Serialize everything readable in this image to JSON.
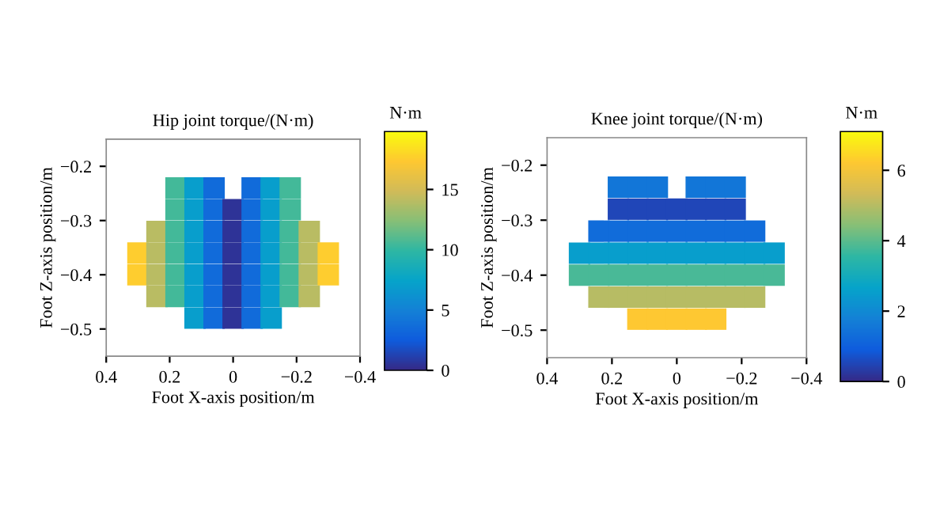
{
  "chart_data": [
    {
      "type": "scatter",
      "title": "Hip joint torque/(N·m)",
      "xlabel": "Foot X-axis position/m",
      "ylabel": "Foot Z-axis position/m",
      "clabel": "N·m",
      "xlim": [
        0.4,
        -0.4
      ],
      "xticks": [
        {
          "value": 0.4,
          "label": "0.4"
        },
        {
          "value": 0.2,
          "label": "0.2"
        },
        {
          "value": 0,
          "label": "0"
        },
        {
          "value": -0.2,
          "label": "−0.2"
        },
        {
          "value": -0.4,
          "label": "−0.4"
        }
      ],
      "ylim": [
        -0.55,
        -0.15
      ],
      "yticks": [
        {
          "value": -0.2,
          "label": "−0.2"
        },
        {
          "value": -0.3,
          "label": "−0.3"
        },
        {
          "value": -0.4,
          "label": "−0.4"
        },
        {
          "value": -0.5,
          "label": "−0.5"
        }
      ],
      "clim": [
        0,
        19.8
      ],
      "cticks": [
        0,
        5,
        10,
        15
      ],
      "grid": false,
      "marker": "square",
      "series": [
        {
          "x": [
            0.18,
            0.12,
            0.06,
            -0.06,
            -0.12,
            -0.18,
            0.18,
            0.12,
            0.06,
            0,
            -0.06,
            -0.12,
            -0.18,
            0.24,
            0.18,
            0.12,
            0.06,
            0,
            -0.06,
            -0.12,
            -0.18,
            -0.24,
            0.3,
            0.24,
            0.18,
            0.12,
            0.06,
            0,
            -0.06,
            -0.12,
            -0.18,
            -0.24,
            -0.3,
            0.3,
            0.24,
            0.18,
            0.12,
            0.06,
            0,
            -0.06,
            -0.12,
            -0.18,
            -0.24,
            -0.3,
            0.24,
            0.18,
            0.12,
            0.06,
            0,
            -0.06,
            -0.12,
            -0.18,
            -0.24,
            0.12,
            0.06,
            0,
            -0.06,
            -0.12
          ],
          "values": [
            -0.24,
            -0.24,
            -0.24,
            -0.24,
            -0.24,
            -0.24,
            -0.28,
            -0.28,
            -0.28,
            -0.28,
            -0.28,
            -0.28,
            -0.28,
            -0.32,
            -0.32,
            -0.32,
            -0.32,
            -0.32,
            -0.32,
            -0.32,
            -0.32,
            -0.32,
            -0.36,
            -0.36,
            -0.36,
            -0.36,
            -0.36,
            -0.36,
            -0.36,
            -0.36,
            -0.36,
            -0.36,
            -0.36,
            -0.4,
            -0.4,
            -0.4,
            -0.4,
            -0.4,
            -0.4,
            -0.4,
            -0.4,
            -0.4,
            -0.4,
            -0.4,
            -0.44,
            -0.44,
            -0.44,
            -0.44,
            -0.44,
            -0.44,
            -0.44,
            -0.44,
            -0.44,
            -0.48,
            -0.48,
            -0.48,
            -0.48,
            -0.48
          ],
          "cvalues": [
            10.5,
            7,
            3.5,
            3.5,
            7,
            10.5,
            10.5,
            7,
            3.5,
            0.5,
            3.5,
            7,
            10.5,
            14,
            10.5,
            7,
            3.5,
            0.5,
            3.5,
            7,
            10.5,
            14,
            17.5,
            14,
            10.5,
            7,
            3.5,
            0.5,
            3.5,
            7,
            10.5,
            14,
            17.5,
            17.5,
            14,
            10.5,
            7,
            3.5,
            0.5,
            3.5,
            7,
            10.5,
            14,
            17.5,
            14,
            10.5,
            7,
            3.5,
            0.5,
            3.5,
            7,
            10.5,
            14,
            7,
            3.5,
            0.5,
            3.5,
            7
          ]
        }
      ]
    },
    {
      "type": "scatter",
      "title": "Knee joint torque/(N·m)",
      "xlabel": "Foot X-axis position/m",
      "ylabel": "Foot Z-axis position/m",
      "clabel": "N·m",
      "xlim": [
        0.4,
        -0.4
      ],
      "xticks": [
        {
          "value": 0.4,
          "label": "0.4"
        },
        {
          "value": 0.2,
          "label": "0.2"
        },
        {
          "value": 0,
          "label": "0"
        },
        {
          "value": -0.2,
          "label": "−0.2"
        },
        {
          "value": -0.4,
          "label": "−0.4"
        }
      ],
      "ylim": [
        -0.55,
        -0.15
      ],
      "yticks": [
        {
          "value": -0.2,
          "label": "−0.2"
        },
        {
          "value": -0.3,
          "label": "−0.3"
        },
        {
          "value": -0.4,
          "label": "−0.4"
        },
        {
          "value": -0.5,
          "label": "−0.5"
        }
      ],
      "clim": [
        0,
        7.1
      ],
      "cticks": [
        0,
        2,
        4,
        6
      ],
      "grid": false,
      "marker": "square",
      "series": [
        {
          "x": [
            0.18,
            0.12,
            0.06,
            -0.06,
            -0.12,
            -0.18,
            0.18,
            0.12,
            0.06,
            0,
            -0.06,
            -0.12,
            -0.18,
            0.24,
            0.18,
            0.12,
            0.06,
            0,
            -0.06,
            -0.12,
            -0.18,
            -0.24,
            0.3,
            0.24,
            0.18,
            0.12,
            0.06,
            0,
            -0.06,
            -0.12,
            -0.18,
            -0.24,
            -0.3,
            0.3,
            0.24,
            0.18,
            0.12,
            0.06,
            0,
            -0.06,
            -0.12,
            -0.18,
            -0.24,
            -0.3,
            0.24,
            0.18,
            0.12,
            0.06,
            0,
            -0.06,
            -0.12,
            -0.18,
            -0.24,
            0.12,
            0.06,
            0,
            -0.06,
            -0.12
          ],
          "values": [
            -0.24,
            -0.24,
            -0.24,
            -0.24,
            -0.24,
            -0.24,
            -0.28,
            -0.28,
            -0.28,
            -0.28,
            -0.28,
            -0.28,
            -0.28,
            -0.32,
            -0.32,
            -0.32,
            -0.32,
            -0.32,
            -0.32,
            -0.32,
            -0.32,
            -0.32,
            -0.36,
            -0.36,
            -0.36,
            -0.36,
            -0.36,
            -0.36,
            -0.36,
            -0.36,
            -0.36,
            -0.36,
            -0.36,
            -0.4,
            -0.4,
            -0.4,
            -0.4,
            -0.4,
            -0.4,
            -0.4,
            -0.4,
            -0.4,
            -0.4,
            -0.4,
            -0.44,
            -0.44,
            -0.44,
            -0.44,
            -0.44,
            -0.44,
            -0.44,
            -0.44,
            -0.44,
            -0.48,
            -0.48,
            -0.48,
            -0.48,
            -0.48
          ],
          "cvalues": [
            1.5,
            1.5,
            1.5,
            1.5,
            1.5,
            1.5,
            0.5,
            0.5,
            0.5,
            0.5,
            0.5,
            0.5,
            0.5,
            1.3,
            1.3,
            1.3,
            1.3,
            1.3,
            1.3,
            1.3,
            1.3,
            1.3,
            2.5,
            2.5,
            2.5,
            2.5,
            2.5,
            2.5,
            2.5,
            2.5,
            2.5,
            2.5,
            2.5,
            3.8,
            3.8,
            3.8,
            3.8,
            3.8,
            3.8,
            3.8,
            3.8,
            3.8,
            3.8,
            3.8,
            5,
            5,
            5,
            5,
            5,
            5,
            5,
            5,
            5,
            6.2,
            6.2,
            6.2,
            6.2,
            6.2
          ]
        }
      ]
    }
  ]
}
